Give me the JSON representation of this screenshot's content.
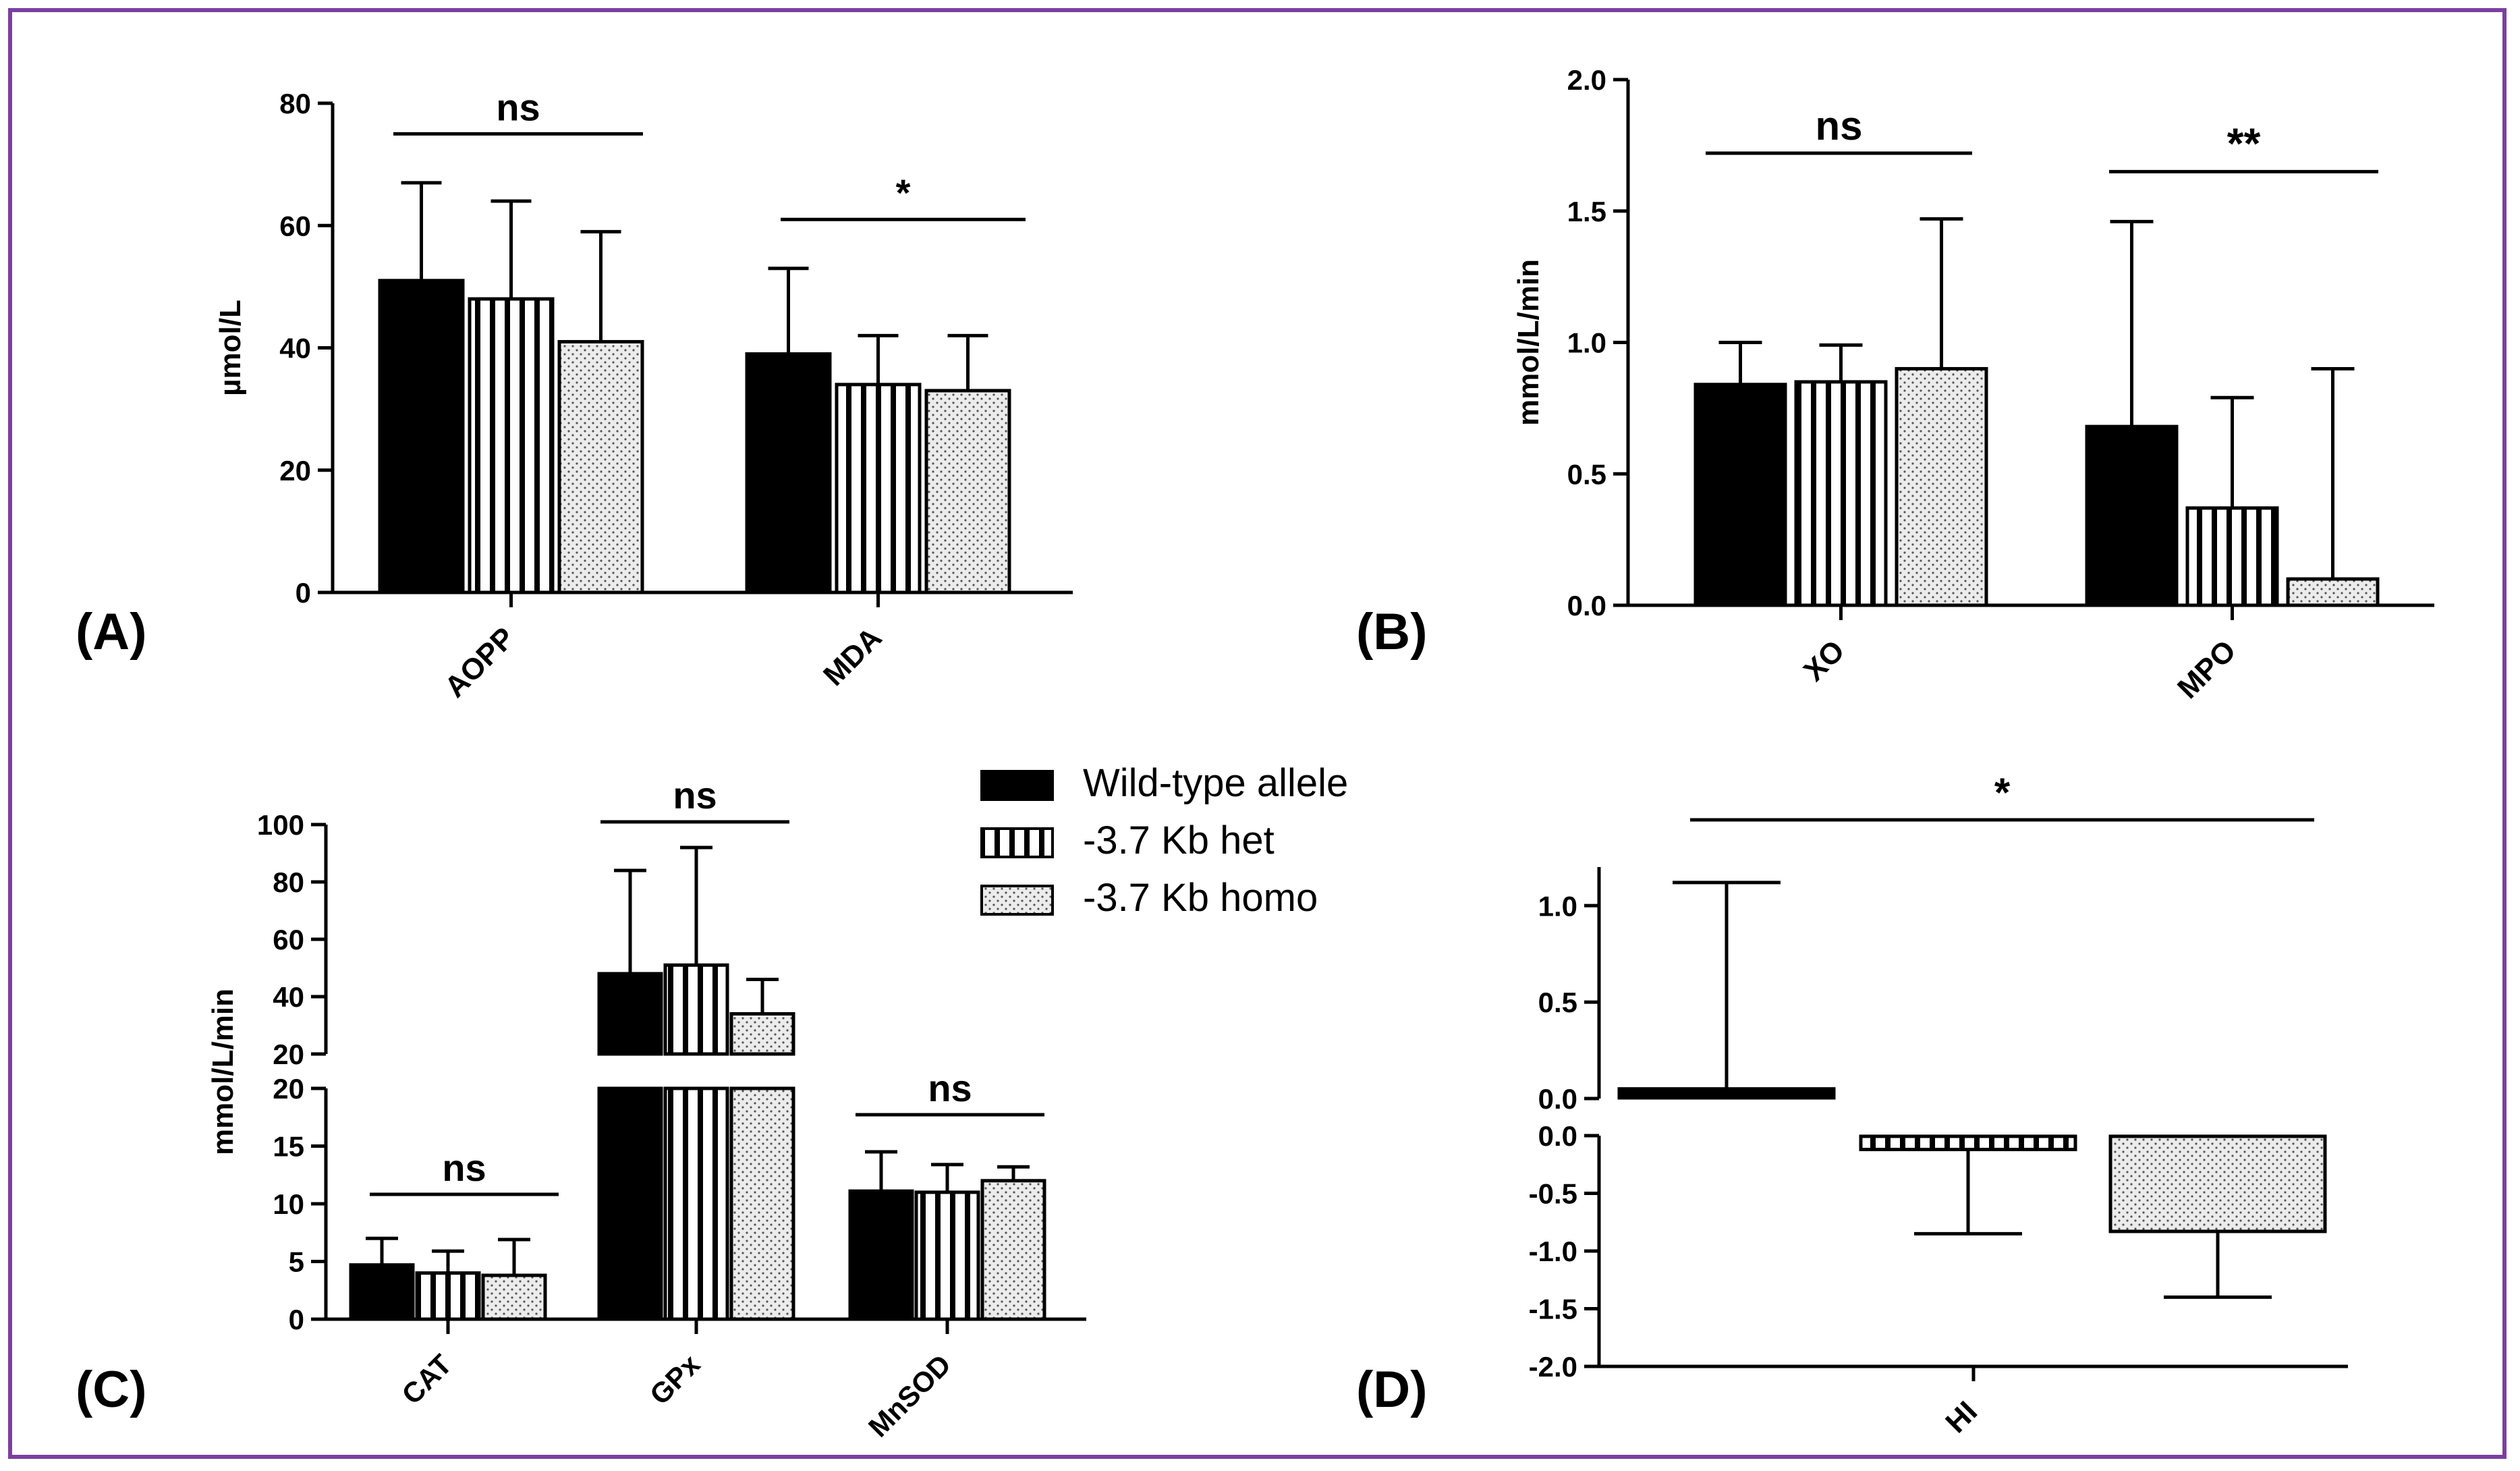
{
  "colors": {
    "border": "#7b3fa0",
    "wild": "#000000",
    "het": "#ffffff",
    "homo": "#ececec",
    "ink": "#000000"
  },
  "legend": {
    "entries": [
      {
        "label": "Wild-type allele",
        "pattern": "solid"
      },
      {
        "label": "-3.7 Kb het",
        "pattern": "vertical-stripes"
      },
      {
        "label": "-3.7 Kb homo",
        "pattern": "dots"
      }
    ]
  },
  "chart_data": [
    {
      "panel": "(A)",
      "type": "bar",
      "ylabel": "µmol/L",
      "ylim": [
        0,
        80
      ],
      "yticks": [
        0,
        20,
        40,
        60,
        80
      ],
      "ytick_labels": [
        "0",
        "20",
        "40",
        "60",
        "80"
      ],
      "categories": [
        "AOPP",
        "MDA"
      ],
      "series": [
        {
          "name": "Wild-type allele",
          "values": [
            51,
            39
          ],
          "errors": [
            16,
            14
          ]
        },
        {
          "name": "-3.7 Kb het",
          "values": [
            48,
            34
          ],
          "errors": [
            16,
            8
          ]
        },
        {
          "name": "-3.7 Kb homo",
          "values": [
            41,
            33
          ],
          "errors": [
            18,
            9
          ]
        }
      ],
      "significance": [
        {
          "category": "AOPP",
          "label": "ns",
          "y": 75
        },
        {
          "category": "MDA",
          "label": "*",
          "y": 61
        }
      ]
    },
    {
      "panel": "(B)",
      "type": "bar",
      "ylabel": "mmol/L/min",
      "ylim": [
        0,
        2.0
      ],
      "yticks": [
        0,
        0.5,
        1.0,
        1.5,
        2.0
      ],
      "ytick_labels": [
        "0.0",
        "0.5",
        "1.0",
        "1.5",
        "2.0"
      ],
      "categories": [
        "XO",
        "MPO"
      ],
      "series": [
        {
          "name": "Wild-type allele",
          "values": [
            0.84,
            0.68
          ],
          "errors": [
            0.16,
            0.78
          ]
        },
        {
          "name": "-3.7 Kb het",
          "values": [
            0.85,
            0.37
          ],
          "errors": [
            0.14,
            0.42
          ]
        },
        {
          "name": "-3.7 Kb homo",
          "values": [
            0.9,
            0.1
          ],
          "errors": [
            0.57,
            0.8
          ]
        }
      ],
      "significance": [
        {
          "category": "XO",
          "label": "ns",
          "y": 1.72
        },
        {
          "category": "MPO",
          "label": "**",
          "y": 1.65
        }
      ]
    },
    {
      "panel": "(C)",
      "type": "bar",
      "ylabel": "mmol/L/min",
      "axis_break": [
        20,
        20
      ],
      "yticks_lower": [
        0,
        5,
        10,
        15,
        20
      ],
      "ytick_labels_lower": [
        "0",
        "5",
        "10",
        "15",
        "20"
      ],
      "yticks_upper": [
        20,
        40,
        60,
        80,
        100
      ],
      "ytick_labels_upper": [
        "20",
        "40",
        "60",
        "80",
        "100"
      ],
      "categories": [
        "CAT",
        "GPx",
        "MnSOD"
      ],
      "series": [
        {
          "name": "Wild-type allele",
          "values": [
            4.7,
            48,
            11.1
          ],
          "errors": [
            2.3,
            36,
            3.4
          ]
        },
        {
          "name": "-3.7 Kb het",
          "values": [
            4.0,
            51,
            11.0
          ],
          "errors": [
            1.9,
            41,
            2.4
          ]
        },
        {
          "name": "-3.7 Kb homo",
          "values": [
            3.8,
            34,
            12.0
          ],
          "errors": [
            3.1,
            12,
            1.2
          ]
        }
      ],
      "significance": [
        {
          "category": "CAT",
          "label": "ns"
        },
        {
          "category": "GPx",
          "label": "ns"
        },
        {
          "category": "MnSOD",
          "label": "ns"
        }
      ]
    },
    {
      "panel": "(D)",
      "type": "bar",
      "ylabel": "",
      "axis_break": [
        0.0,
        0.0
      ],
      "yticks_upper": [
        0.0,
        0.5,
        1.0
      ],
      "ytick_labels_upper": [
        "0.0",
        "0.5",
        "1.0"
      ],
      "yticks_lower": [
        0.0,
        -0.5,
        -1.0,
        -1.5,
        -2.0
      ],
      "ytick_labels_lower": [
        "0.0",
        "-0.5",
        "-1.0",
        "-1.5",
        "-2.0"
      ],
      "categories": [
        "HI"
      ],
      "series": [
        {
          "name": "Wild-type allele",
          "values": [
            0.05
          ],
          "errors": [
            1.07
          ]
        },
        {
          "name": "-3.7 Kb het",
          "values": [
            -0.12
          ],
          "errors": [
            0.73
          ]
        },
        {
          "name": "-3.7 Kb homo",
          "values": [
            -0.83
          ],
          "errors": [
            0.57
          ]
        }
      ],
      "significance": [
        {
          "category": "HI",
          "label": "*"
        }
      ]
    }
  ]
}
